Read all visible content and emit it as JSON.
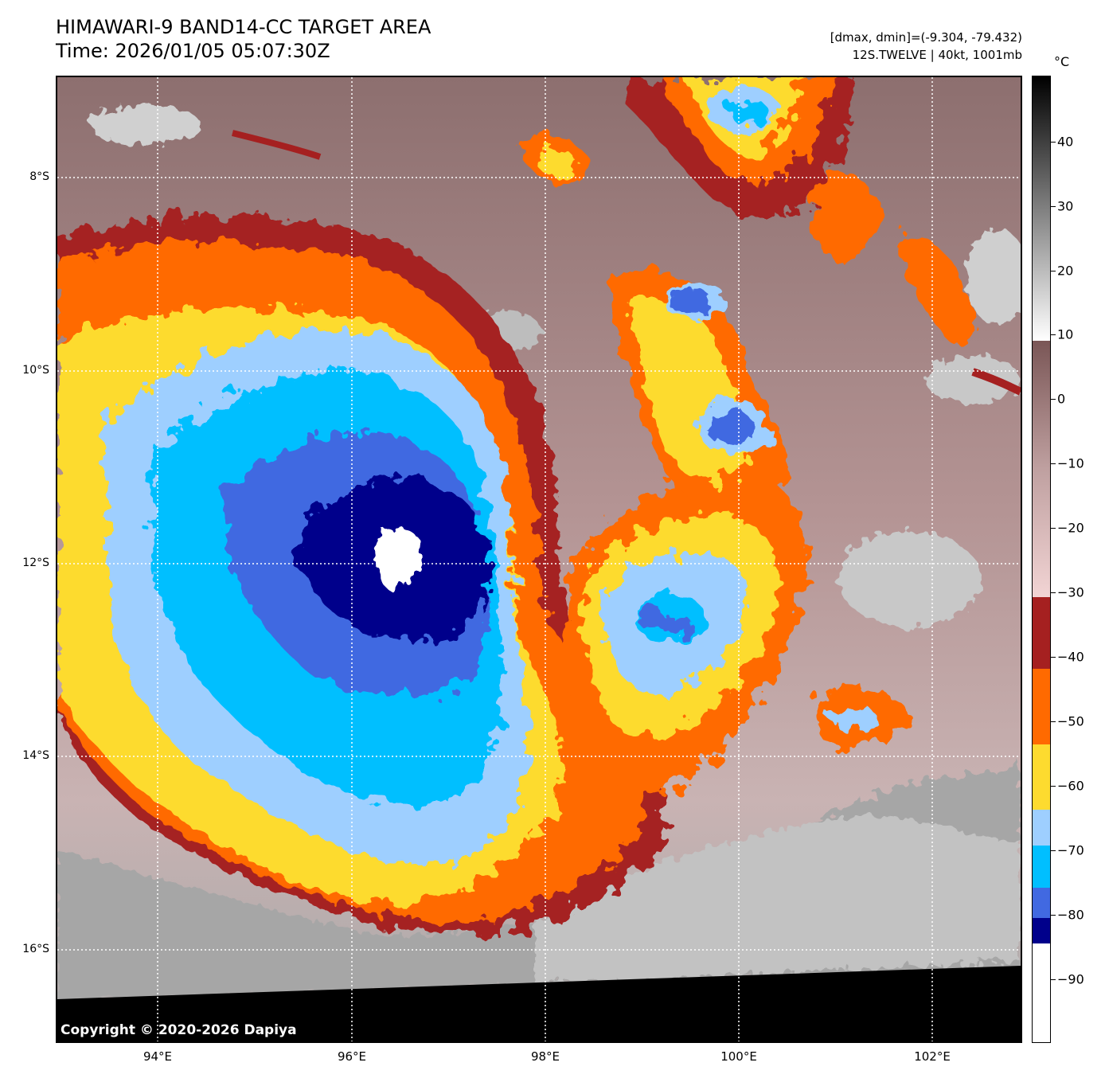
{
  "header": {
    "title_line1": "HIMAWARI-9 BAND14-CC TARGET AREA",
    "title_line2": "Time: 2026/01/05 05:07:30Z",
    "info_line1": "[dmax, dmin]=(-9.304, -79.432)",
    "info_line2": "12S.TWELVE | 40kt, 1001mb"
  },
  "map": {
    "lon_labels": [
      "94°E",
      "96°E",
      "98°E",
      "100°E",
      "102°E"
    ],
    "lat_labels": [
      "8°S",
      "10°S",
      "12°S",
      "14°S",
      "16°S"
    ],
    "copyright": "Copyright © 2020-2026 Dapiya"
  },
  "colorbar": {
    "unit": "°C",
    "ticks": [
      "40",
      "30",
      "20",
      "10",
      "0",
      "−10",
      "−20",
      "−30",
      "−40",
      "−50",
      "−60",
      "−70",
      "−80",
      "−90"
    ],
    "colors": {
      "white_cold": "#ffffff",
      "navy": "#00008b",
      "royal_blue": "#4169e1",
      "sky_blue": "#00bfff",
      "light_blue": "#9ecfff",
      "gold": "#fddb2f",
      "orange": "#ff6a00",
      "dark_red": "#a52020",
      "rose": "#f2d4d4",
      "brown": "#7a5656",
      "black": "#000000"
    }
  }
}
